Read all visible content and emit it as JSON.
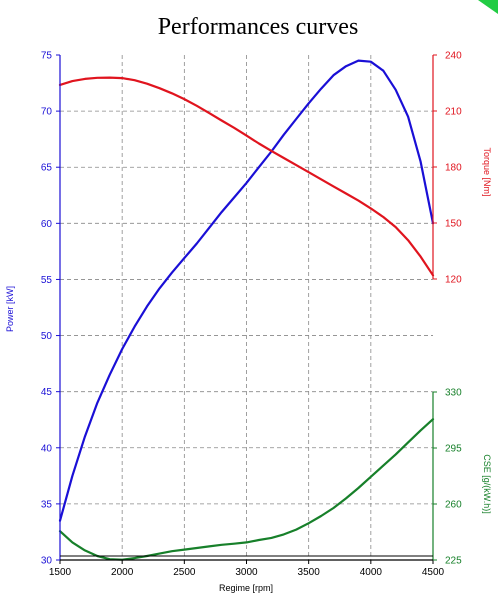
{
  "chart_data": {
    "type": "line",
    "title": "Performances curves",
    "xlabel": "Regime [rpm]",
    "x_ticks": [
      1500,
      2000,
      2500,
      3000,
      3500,
      4000,
      4500
    ],
    "xlim": [
      1500,
      4500
    ],
    "colors": {
      "power": "#1a0fd6",
      "torque": "#e0141e",
      "cse": "#17802a",
      "grid": "#888888"
    },
    "axes": {
      "power": {
        "label": "Power [kW]",
        "side": "left",
        "ylim": [
          30,
          75
        ],
        "ticks": [
          30,
          35,
          40,
          45,
          50,
          55,
          60,
          65,
          70,
          75
        ]
      },
      "torque": {
        "label": "Torque [Nm]",
        "side": "right-top",
        "ylim": [
          120,
          240
        ],
        "ticks": [
          120,
          150,
          180,
          210,
          240
        ]
      },
      "cse": {
        "label": "CSE [g/(kW.h)]",
        "side": "right-bottom",
        "ylim": [
          225,
          330
        ],
        "ticks": [
          225,
          260,
          295,
          330
        ]
      }
    },
    "series": [
      {
        "axis": "power",
        "x": [
          1500,
          1600,
          1700,
          1800,
          1900,
          2000,
          2100,
          2200,
          2300,
          2400,
          2500,
          2600,
          2700,
          2800,
          2900,
          3000,
          3100,
          3200,
          3300,
          3400,
          3500,
          3600,
          3700,
          3800,
          3900,
          4000,
          4100,
          4200,
          4300,
          4400,
          4500
        ],
        "values": [
          33.5,
          37.5,
          41.0,
          44.0,
          46.5,
          48.8,
          50.8,
          52.6,
          54.2,
          55.6,
          56.9,
          58.2,
          59.6,
          61.0,
          62.3,
          63.6,
          65.0,
          66.4,
          67.9,
          69.3,
          70.7,
          72.0,
          73.2,
          74.0,
          74.5,
          74.4,
          73.6,
          71.9,
          69.5,
          65.5,
          60.0
        ]
      },
      {
        "axis": "torque",
        "x": [
          1500,
          1600,
          1700,
          1800,
          1900,
          2000,
          2100,
          2200,
          2300,
          2400,
          2500,
          2600,
          2700,
          2800,
          2900,
          3000,
          3100,
          3200,
          3300,
          3400,
          3500,
          3600,
          3700,
          3800,
          3900,
          4000,
          4100,
          4200,
          4300,
          4400,
          4500
        ],
        "values": [
          224,
          226,
          227.2,
          227.8,
          227.9,
          227.6,
          226.5,
          224.6,
          222.2,
          219.5,
          216.4,
          212.8,
          208.9,
          204.9,
          201.0,
          196.8,
          192.6,
          188.6,
          184.8,
          181.0,
          177.2,
          173.4,
          169.6,
          165.8,
          162.0,
          157.8,
          153.2,
          147.8,
          140.8,
          132.0,
          122.0
        ]
      },
      {
        "axis": "cse",
        "x": [
          1500,
          1600,
          1700,
          1800,
          1900,
          2000,
          2100,
          2200,
          2300,
          2400,
          2500,
          2600,
          2700,
          2800,
          2900,
          3000,
          3100,
          3200,
          3300,
          3400,
          3500,
          3600,
          3700,
          3800,
          3900,
          4000,
          4100,
          4200,
          4300,
          4400,
          4500
        ],
        "values": [
          243,
          236,
          231,
          227.5,
          225.5,
          225.2,
          226.2,
          227.5,
          229,
          230.5,
          231.5,
          232.5,
          233.5,
          234.5,
          235.2,
          236.0,
          237.5,
          238.8,
          241.0,
          244.0,
          248.0,
          252.5,
          257.5,
          263.5,
          270,
          277,
          284,
          291,
          298.5,
          306,
          313
        ]
      }
    ]
  }
}
